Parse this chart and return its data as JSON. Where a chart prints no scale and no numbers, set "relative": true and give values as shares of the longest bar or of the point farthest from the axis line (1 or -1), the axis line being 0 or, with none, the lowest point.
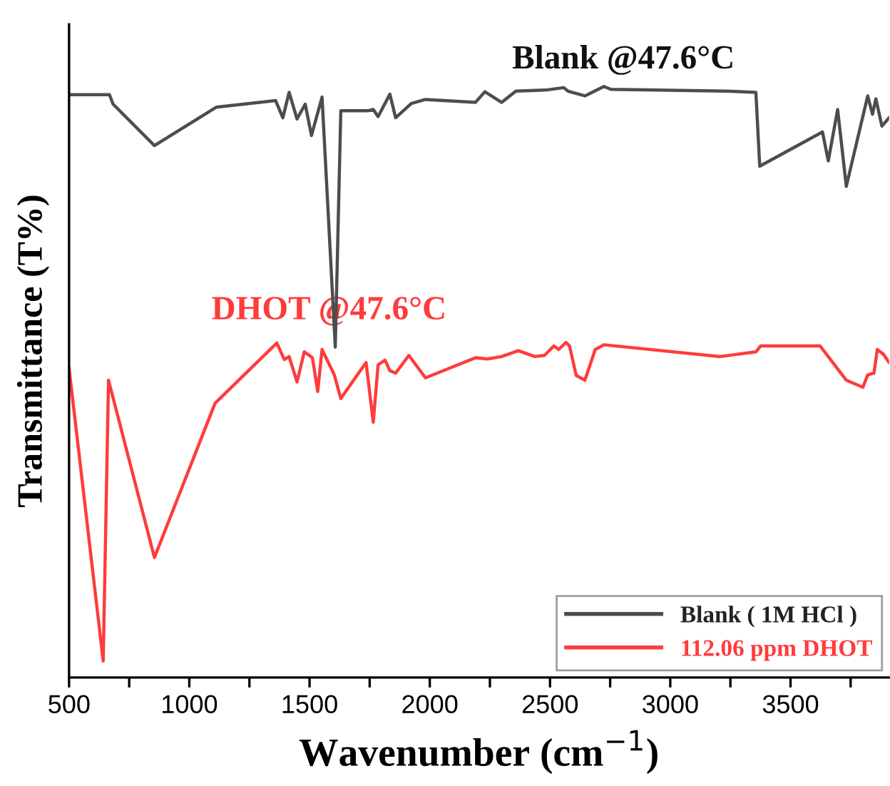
{
  "chart_data": {
    "type": "line",
    "relative": true,
    "xlabel": "Wavenumber (cm$^{−1}$)",
    "ylabel": "Transmittance (T%)",
    "xlim": [
      500,
      3910
    ],
    "xticks": [
      500,
      {
        "value": 750,
        "label": null
      },
      1000,
      {
        "value": 1250,
        "label": null
      },
      1500,
      {
        "value": 1750,
        "label": null
      },
      2000,
      {
        "value": 2250,
        "label": null
      },
      2500,
      {
        "value": 2750,
        "label": null
      },
      3000,
      {
        "value": 3250,
        "label": null
      },
      3500,
      {
        "value": 3750,
        "label": null
      }
    ],
    "legend": "bottom right",
    "grid": false,
    "marker": "none",
    "line_style": "solid",
    "annotations": [
      "Blank @47.6°C",
      "DHOT @47.6°C"
    ],
    "series": [
      {
        "name": "Blank ( 1M HCl )",
        "color": "#4d4d4d",
        "x": [
          500,
          668,
          683,
          855,
          1113,
          1359,
          1389,
          1415,
          1448,
          1482,
          1508,
          1552,
          1607,
          1630,
          1745,
          1765,
          1785,
          1834,
          1858,
          1923,
          1982,
          2190,
          2229,
          2299,
          2358,
          2486,
          2556,
          2575,
          2645,
          2724,
          2753,
          3238,
          3356,
          3372,
          3633,
          3657,
          3696,
          3732,
          3821,
          3841,
          3855,
          3880,
          3910
        ],
        "values": [
          0.986,
          0.986,
          0.97,
          0.9,
          0.965,
          0.976,
          0.947,
          0.99,
          0.945,
          0.97,
          0.917,
          0.982,
          0.559,
          0.959,
          0.959,
          0.961,
          0.949,
          0.987,
          0.947,
          0.971,
          0.978,
          0.973,
          0.991,
          0.973,
          0.992,
          0.994,
          0.998,
          0.992,
          0.984,
          1.0,
          0.995,
          0.992,
          0.99,
          0.865,
          0.923,
          0.874,
          0.961,
          0.831,
          0.984,
          0.953,
          0.979,
          0.933,
          0.947
        ]
      },
      {
        "name": "112.06 ppm DHOT",
        "color": "#ff3b3b",
        "x": [
          500,
          642,
          664,
          855,
          1107,
          1364,
          1395,
          1415,
          1448,
          1478,
          1512,
          1534,
          1552,
          1603,
          1630,
          1735,
          1765,
          1785,
          1814,
          1834,
          1858,
          1913,
          1982,
          2190,
          2240,
          2299,
          2368,
          2437,
          2477,
          2516,
          2536,
          2566,
          2581,
          2609,
          2645,
          2688,
          2724,
          3208,
          3356,
          3376,
          3623,
          3732,
          3801,
          3821,
          3847,
          3861,
          3886,
          3910
        ],
        "values": [
          0.523,
          0.028,
          0.503,
          0.203,
          0.464,
          0.566,
          0.538,
          0.543,
          0.5,
          0.551,
          0.541,
          0.484,
          0.555,
          0.512,
          0.472,
          0.533,
          0.432,
          0.529,
          0.537,
          0.519,
          0.515,
          0.545,
          0.507,
          0.541,
          0.539,
          0.543,
          0.553,
          0.543,
          0.545,
          0.561,
          0.555,
          0.567,
          0.561,
          0.511,
          0.503,
          0.555,
          0.563,
          0.543,
          0.551,
          0.561,
          0.561,
          0.503,
          0.491,
          0.512,
          0.515,
          0.555,
          0.547,
          0.533
        ]
      }
    ]
  }
}
